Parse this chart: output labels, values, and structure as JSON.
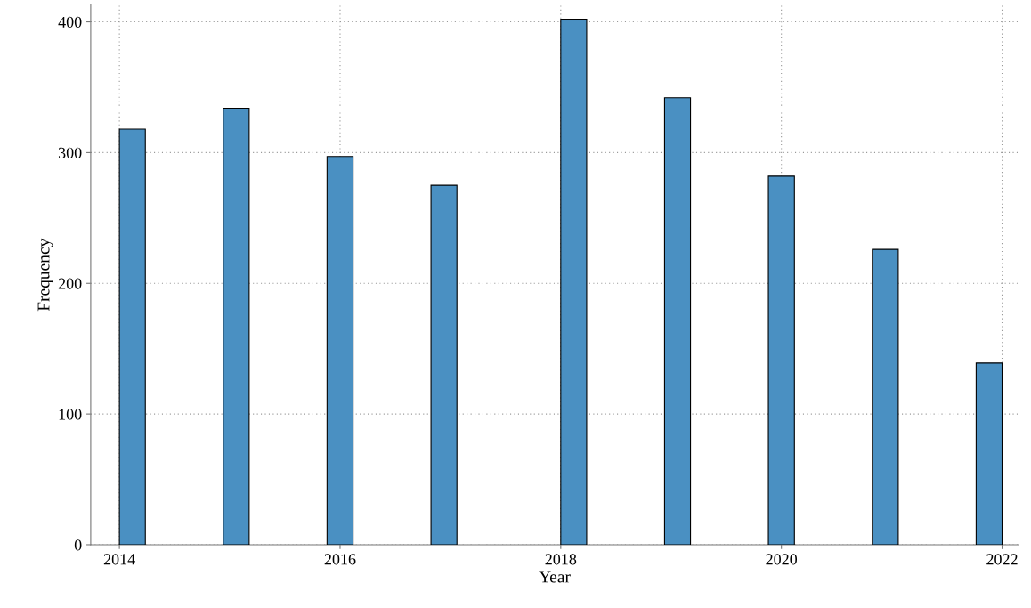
{
  "chart_data": {
    "type": "histogram",
    "xlabel": "Year",
    "ylabel": "Frequency",
    "color": "#4a90c2",
    "bins": [
      2014,
      2014.235,
      2014.471,
      2014.706,
      2014.941,
      2015.176,
      2015.412,
      2015.647,
      2015.882,
      2016.118,
      2016.353,
      2016.588,
      2016.824,
      2017.059,
      2017.294,
      2017.529,
      2017.765,
      2018,
      2018.235,
      2018.471,
      2018.706,
      2018.941,
      2019.176,
      2019.412,
      2019.647,
      2019.882,
      2020.118,
      2020.353,
      2020.588,
      2020.824,
      2021.059,
      2021.294,
      2021.529,
      2021.765,
      2022
    ],
    "values": [
      318,
      0,
      0,
      0,
      334,
      0,
      0,
      0,
      297,
      0,
      0,
      0,
      275,
      0,
      0,
      0,
      0,
      402,
      0,
      0,
      0,
      342,
      0,
      0,
      0,
      282,
      0,
      0,
      0,
      226,
      0,
      0,
      0,
      139
    ],
    "xlim": [
      2013.74,
      2022.15
    ],
    "xticks": [
      2014,
      2016,
      2018,
      2020,
      2022
    ],
    "ylim": [
      0,
      413
    ],
    "yticks": [
      0,
      100,
      200,
      300,
      400
    ],
    "grid": true
  }
}
